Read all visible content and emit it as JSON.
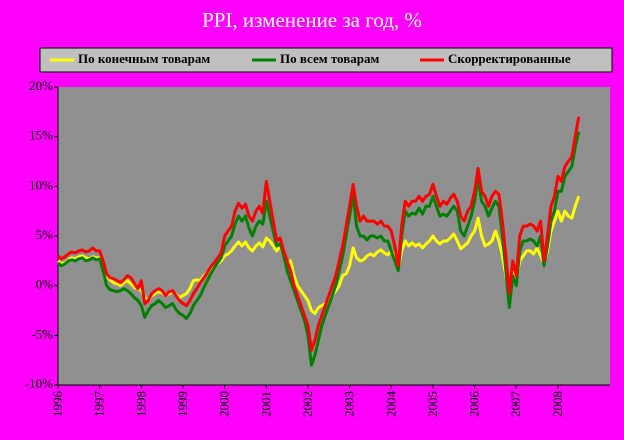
{
  "chart_data": {
    "type": "line",
    "title": "PPI, изменение за год, %",
    "categories": [
      "1996",
      null,
      null,
      null,
      null,
      null,
      null,
      null,
      null,
      null,
      null,
      null,
      "1997",
      null,
      null,
      null,
      null,
      null,
      null,
      null,
      null,
      null,
      null,
      null,
      "1998",
      null,
      null,
      null,
      null,
      null,
      null,
      null,
      null,
      null,
      null,
      null,
      "1999",
      null,
      null,
      null,
      null,
      null,
      null,
      null,
      null,
      null,
      null,
      null,
      "2000",
      null,
      null,
      null,
      null,
      null,
      null,
      null,
      null,
      null,
      null,
      null,
      "2001",
      null,
      null,
      null,
      null,
      null,
      null,
      null,
      null,
      null,
      null,
      null,
      "2002",
      null,
      null,
      null,
      null,
      null,
      null,
      null,
      null,
      null,
      null,
      null,
      "2003",
      null,
      null,
      null,
      null,
      null,
      null,
      null,
      null,
      null,
      null,
      null,
      "2004",
      null,
      null,
      null,
      null,
      null,
      null,
      null,
      null,
      null,
      null,
      null,
      "2005",
      null,
      null,
      null,
      null,
      null,
      null,
      null,
      null,
      null,
      null,
      null,
      "2006",
      null,
      null,
      null,
      null,
      null,
      null,
      null,
      null,
      null,
      null,
      null,
      "2007",
      null,
      null,
      null,
      null,
      null,
      null,
      null,
      null,
      null,
      null,
      null,
      "2008",
      null,
      null,
      null,
      null,
      null,
      null,
      null,
      null,
      null,
      null,
      null,
      null,
      null,
      null
    ],
    "series": [
      {
        "name": "По конечным товарам",
        "color": "#ffff00",
        "values": [
          2.5,
          2.2,
          2.3,
          2.6,
          2.8,
          2.7,
          2.9,
          3.0,
          2.8,
          2.7,
          2.9,
          2.8,
          2.8,
          2.0,
          1.0,
          0.6,
          0.3,
          0.2,
          0.0,
          0.3,
          0.5,
          0.2,
          -0.2,
          -0.3,
          -0.5,
          -1.2,
          -1.5,
          -1.0,
          -0.8,
          -0.6,
          -0.7,
          -1.0,
          -0.8,
          -0.6,
          -0.9,
          -1.2,
          -1.0,
          -0.8,
          -0.3,
          0.5,
          0.6,
          0.5,
          1.0,
          1.3,
          1.6,
          2.0,
          2.2,
          2.5,
          3,
          3.2,
          3.5,
          4,
          4.4,
          4,
          4.4,
          3.8,
          3.5,
          4,
          4.3,
          3.9,
          4.8,
          4.5,
          4,
          3.5,
          4,
          3,
          2,
          2.5,
          1,
          0,
          -0.5,
          -1,
          -1.5,
          -2.5,
          -2.8,
          -2.2,
          -2,
          -1.8,
          -1.5,
          -1,
          -0.5,
          0,
          1,
          1.2,
          2,
          3.8,
          2.8,
          2.5,
          2.6,
          3,
          3.2,
          3,
          3.4,
          3.6,
          3.3,
          3.1,
          3.5,
          3,
          1.8,
          3.5,
          4.5,
          4,
          4.3,
          4,
          4.2,
          3.8,
          4.2,
          4.5,
          5,
          4.5,
          4.2,
          4.5,
          4.5,
          4.8,
          5.2,
          4.5,
          3.7,
          4,
          4.3,
          5,
          5.5,
          6.8,
          5,
          4,
          4.2,
          4.5,
          5.5,
          4.5,
          3,
          1,
          -0.8,
          1.5,
          0.5,
          2.5,
          3,
          3.5,
          3.5,
          3.2,
          3.8,
          3,
          2.2,
          3.5,
          5.5,
          6.5,
          7.5,
          6.5,
          7.5,
          7,
          6.8,
          8,
          9,
          null,
          null,
          null,
          null,
          null,
          null,
          null,
          null
        ]
      },
      {
        "name": "По всем товарам",
        "color": "#008000",
        "values": [
          2.3,
          2,
          2.2,
          2.5,
          2.6,
          2.5,
          2.7,
          2.8,
          2.5,
          2.6,
          2.8,
          2.6,
          2.7,
          1.5,
          0,
          -0.4,
          -0.5,
          -0.6,
          -0.5,
          -0.3,
          -0.5,
          -0.8,
          -1.2,
          -1.5,
          -2,
          -3.2,
          -2.5,
          -2.0,
          -1.8,
          -1.5,
          -1.8,
          -2.2,
          -2.0,
          -1.8,
          -2.4,
          -2.8,
          -3,
          -3.3,
          -2.8,
          -2,
          -1.5,
          -1,
          -0.2,
          0.5,
          1.2,
          1.8,
          2.3,
          2.8,
          4,
          4.5,
          5,
          6.2,
          7,
          6.5,
          7,
          5.8,
          5,
          6,
          6.5,
          6.2,
          8.5,
          7,
          5.5,
          4,
          4.2,
          3,
          1.5,
          0.5,
          -0.5,
          -1.5,
          -2.5,
          -3.5,
          -5,
          -8,
          -7,
          -5.5,
          -4,
          -3,
          -2,
          -1,
          0,
          1.5,
          3,
          5,
          7,
          9.2,
          6,
          5,
          5,
          4.6,
          5,
          5,
          4.8,
          5,
          4.5,
          4.5,
          3.5,
          2.5,
          1.5,
          5,
          7.5,
          7,
          7.3,
          7.2,
          7.8,
          7.2,
          8,
          8,
          9,
          8,
          7,
          7.2,
          7,
          7.5,
          8,
          7.5,
          5.5,
          5,
          6,
          7,
          8.5,
          10.8,
          8.5,
          8,
          7,
          7.8,
          8.5,
          8,
          5,
          1.5,
          -2.2,
          1,
          0,
          3.5,
          4.5,
          4.5,
          4.7,
          4.5,
          4,
          5,
          2,
          4,
          6.5,
          7.5,
          9.5,
          9.5,
          11,
          11.5,
          12,
          14,
          15.5,
          null,
          null,
          null,
          null,
          null,
          null,
          null,
          null
        ]
      },
      {
        "name": "Скорректированные",
        "color": "#ff0000",
        "values": [
          3,
          2.7,
          2.9,
          3.2,
          3.4,
          3.3,
          3.5,
          3.6,
          3.4,
          3.5,
          3.8,
          3.5,
          3.5,
          2.5,
          1.2,
          0.8,
          0.7,
          0.5,
          0.3,
          0.6,
          1.0,
          0.8,
          0.2,
          -0.3,
          0.5,
          -1.8,
          -1.5,
          -0.8,
          -0.5,
          -0.3,
          -0.5,
          -1.0,
          -0.6,
          -0.5,
          -1.0,
          -1.5,
          -1.8,
          -2,
          -1.5,
          -0.8,
          -0.3,
          0.3,
          0.8,
          1.3,
          1.9,
          2.3,
          2.8,
          3.3,
          5,
          5.5,
          6,
          7.5,
          8.3,
          7.8,
          8.2,
          7,
          6.5,
          7.5,
          8,
          7.3,
          10.5,
          8.5,
          6.5,
          4.5,
          4.8,
          3.5,
          2.5,
          1.5,
          0,
          -1,
          -2,
          -3,
          -4,
          -6.5,
          -5.5,
          -4,
          -3,
          -2,
          -1,
          0,
          1,
          2.5,
          4,
          6,
          8,
          10.2,
          8,
          6.5,
          7,
          6.5,
          6.5,
          6.5,
          6.2,
          6.5,
          6,
          6,
          5.5,
          4,
          2,
          6,
          8.5,
          8,
          8.5,
          8.5,
          9,
          8.5,
          9,
          9.2,
          10.2,
          9,
          8,
          8.5,
          8.2,
          8.8,
          9.2,
          8.5,
          7,
          6.5,
          7.5,
          8,
          9.5,
          11.8,
          9.5,
          9,
          8,
          9,
          9.5,
          9.2,
          6.5,
          3,
          -0.8,
          2.5,
          1,
          5,
          6,
          6,
          6.2,
          6,
          5.5,
          6.5,
          2.5,
          5,
          8,
          9,
          11,
          10.5,
          12,
          12.5,
          13,
          15,
          17,
          null,
          null,
          null,
          null,
          null,
          null,
          null,
          null
        ]
      }
    ],
    "ylim": [
      -10,
      20
    ],
    "yticks": [
      {
        "value": -10,
        "label": "-10%"
      },
      {
        "value": -5,
        "label": "-5%"
      },
      {
        "value": 0,
        "label": "0%"
      },
      {
        "value": 5,
        "label": "5%"
      },
      {
        "value": 10,
        "label": "10%"
      },
      {
        "value": 15,
        "label": "15%"
      },
      {
        "value": 20,
        "label": "20%"
      }
    ],
    "grid": false
  }
}
